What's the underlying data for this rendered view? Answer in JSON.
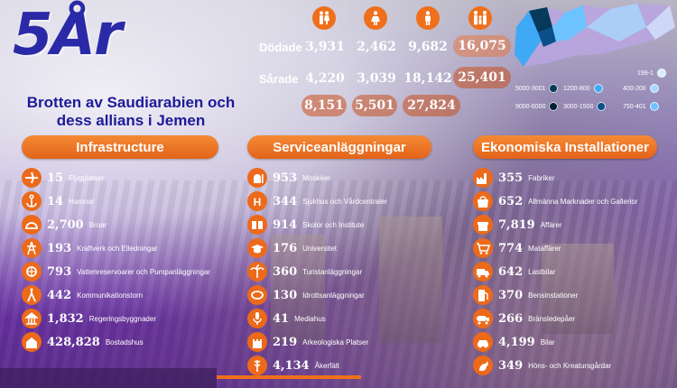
{
  "header": {
    "title": "5År",
    "subtitle": "Brotten av Saudiarabien och dess allians i Jemen"
  },
  "casualties": {
    "row_labels": [
      "Dödade",
      "Sårade"
    ],
    "icons": [
      "man-woman-icon",
      "woman-icon",
      "man-icon",
      "family-icon"
    ],
    "killed": [
      "3,931",
      "2,462",
      "9,682",
      "16,075"
    ],
    "injured": [
      "4,220",
      "3,039",
      "18,142",
      "25,401"
    ],
    "totals": [
      "8,151",
      "5,501",
      "27,824"
    ]
  },
  "map_legend": [
    {
      "label": "199-1",
      "color": "#d7ecff"
    },
    {
      "label": "400-200",
      "color": "#a6d8ff"
    },
    {
      "label": "1200-800",
      "color": "#3fa9f5"
    },
    {
      "label": "5000-3001",
      "color": "#07395a"
    },
    {
      "label": "750-401",
      "color": "#6cc3ff"
    },
    {
      "label": "3000-1500",
      "color": "#0b4f8a"
    },
    {
      "label": "9000-6000",
      "color": "#031f33"
    }
  ],
  "sections": [
    {
      "heading": "Infrastructure",
      "rows": [
        {
          "value": "15",
          "label": "Flygplatser",
          "icon": "airplane-icon"
        },
        {
          "value": "14",
          "label": "Hamnar",
          "icon": "anchor-icon"
        },
        {
          "value": "2,700",
          "label": "Broar",
          "icon": "bridge-icon"
        },
        {
          "value": "193",
          "label": "Kraftverk och Elledningar",
          "icon": "power-tower-icon"
        },
        {
          "value": "793",
          "label": "Vattenreservoarer och Pumpanläggningar",
          "icon": "water-pump-icon"
        },
        {
          "value": "442",
          "label": "Kommunikationstorn",
          "icon": "antenna-icon"
        },
        {
          "value": "1,832",
          "label": "Regeringsbyggnader",
          "icon": "government-building-icon"
        },
        {
          "value": "428,828",
          "label": "Bostadshus",
          "icon": "house-icon"
        }
      ]
    },
    {
      "heading": "Serviceanläggningar",
      "rows": [
        {
          "value": "953",
          "label": "Moskéer",
          "icon": "mosque-icon"
        },
        {
          "value": "344",
          "label": "Sjukhus och Vårdcentraler",
          "icon": "hospital-icon"
        },
        {
          "value": "914",
          "label": "Skolor och Institute",
          "icon": "book-icon"
        },
        {
          "value": "176",
          "label": "Universitet",
          "icon": "graduation-cap-icon"
        },
        {
          "value": "360",
          "label": "Turistanläggningar",
          "icon": "palm-tree-icon"
        },
        {
          "value": "130",
          "label": "Idrottsanläggningar",
          "icon": "stadium-icon"
        },
        {
          "value": "41",
          "label": "Mediahus",
          "icon": "microphone-icon"
        },
        {
          "value": "219",
          "label": "Arkeologiska Platser",
          "icon": "castle-icon"
        },
        {
          "value": "4,134",
          "label": "Åkerfält",
          "icon": "wheat-icon"
        }
      ]
    },
    {
      "heading": "Ekonomiska Installationer",
      "rows": [
        {
          "value": "355",
          "label": "Fabriker",
          "icon": "factory-icon"
        },
        {
          "value": "652",
          "label": "Allmänna Marknader och Gallerior",
          "icon": "market-icon"
        },
        {
          "value": "7,819",
          "label": "Affärer",
          "icon": "shop-icon"
        },
        {
          "value": "774",
          "label": "Mataffärer",
          "icon": "grocery-icon"
        },
        {
          "value": "642",
          "label": "Lastbilar",
          "icon": "truck-icon"
        },
        {
          "value": "370",
          "label": "Bensinstationer",
          "icon": "fuel-pump-icon"
        },
        {
          "value": "266",
          "label": "Bränsledepåer",
          "icon": "fuel-tanker-icon"
        },
        {
          "value": "4,199",
          "label": "Bilar",
          "icon": "car-icon"
        },
        {
          "value": "349",
          "label": "Höns- och Kreatursgårdar",
          "icon": "rooster-icon"
        }
      ]
    }
  ],
  "colors": {
    "accent": "#ec6a1a",
    "title": "#2a2aa8"
  }
}
